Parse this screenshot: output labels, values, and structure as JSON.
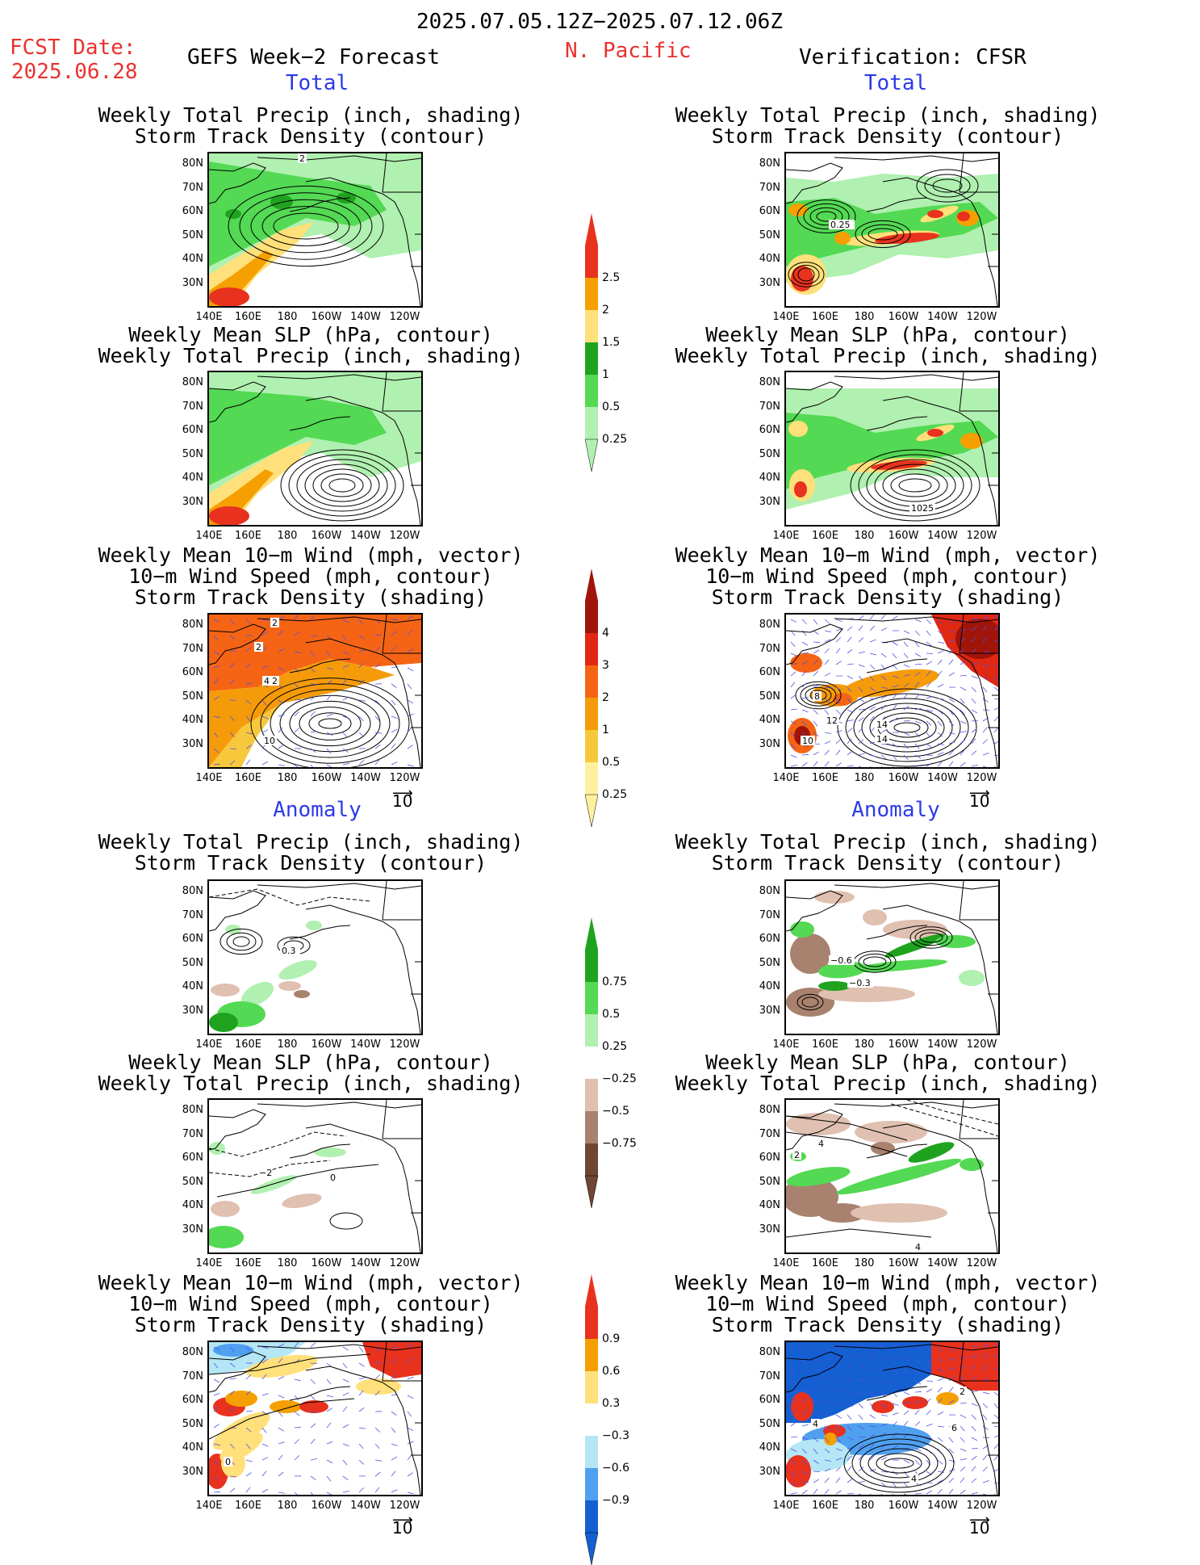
{
  "header": {
    "date_range": "2025.07.05.12Z−2025.07.12.06Z",
    "fcst_label": "FCST Date:",
    "fcst_date": "2025.06.28",
    "forecast_title": "GEFS Week−2 Forecast",
    "region": "N. Pacific",
    "verification": "Verification: CFSR"
  },
  "sections": {
    "total": "Total",
    "anomaly": "Anomaly"
  },
  "titles": {
    "precip_storm": [
      "Weekly Total Precip (inch, shading)",
      "Storm Track Density (contour)"
    ],
    "slp_precip": [
      "Weekly Mean SLP (hPa, contour)",
      "Weekly Total Precip (inch, shading)"
    ],
    "wind_storm": [
      "Weekly Mean 10−m Wind (mph, vector)",
      "10−m Wind Speed (mph, contour)",
      "Storm Track Density (shading)"
    ]
  },
  "axes": {
    "lat_ticks": [
      "80N",
      "70N",
      "60N",
      "50N",
      "40N",
      "30N"
    ],
    "lon_ticks": [
      "140E",
      "160E",
      "180",
      "160W",
      "140W",
      "120W"
    ]
  },
  "vector_ref": "10",
  "colorbars": {
    "precip": {
      "labels": [
        "2.5",
        "2",
        "1.5",
        "1",
        "0.5",
        "0.25"
      ],
      "colors": [
        "#e8321e",
        "#f5a000",
        "#ffe07a",
        "#1fa31f",
        "#53d953",
        "#b0f0b0"
      ]
    },
    "storm": {
      "labels": [
        "4",
        "3",
        "2",
        "1",
        "0.5",
        "0.25"
      ],
      "colors": [
        "#a0140a",
        "#e02812",
        "#f56414",
        "#f59b0a",
        "#f8c83c",
        "#fff0a0"
      ]
    },
    "precip_anom": {
      "labels": [
        "0.75",
        "0.5",
        "0.25",
        "−0.25",
        "−0.5",
        "−0.75"
      ],
      "colors": [
        "#1fa31f",
        "#53d953",
        "#b0f0b0",
        "#ffffff",
        "#e0c0b0",
        "#a8826e",
        "#6e4632"
      ]
    },
    "storm_anom": {
      "labels": [
        "0.9",
        "0.6",
        "0.3",
        "−0.3",
        "−0.6",
        "−0.9"
      ],
      "colors": [
        "#e8321e",
        "#f5a000",
        "#ffe07a",
        "#ffffff",
        "#b4e6f5",
        "#50a0f0",
        "#1460d2"
      ]
    }
  },
  "contour_labels": {
    "p1_left": "2",
    "p1_right": "0.25",
    "p2_right": "1025",
    "p3_left": [
      "2",
      "2",
      "4",
      "2",
      "10"
    ],
    "p3_right": [
      "8",
      "12",
      "14",
      "10",
      "16"
    ],
    "p4_left": "0.3",
    "p4_right": [
      "−0.6",
      "−0.3"
    ],
    "p5_left": [
      "−2",
      "0"
    ],
    "p5_right": [
      "4",
      "2",
      "4"
    ],
    "p6_left": "0",
    "p6_right": [
      "2",
      "4",
      "4",
      "6"
    ]
  }
}
